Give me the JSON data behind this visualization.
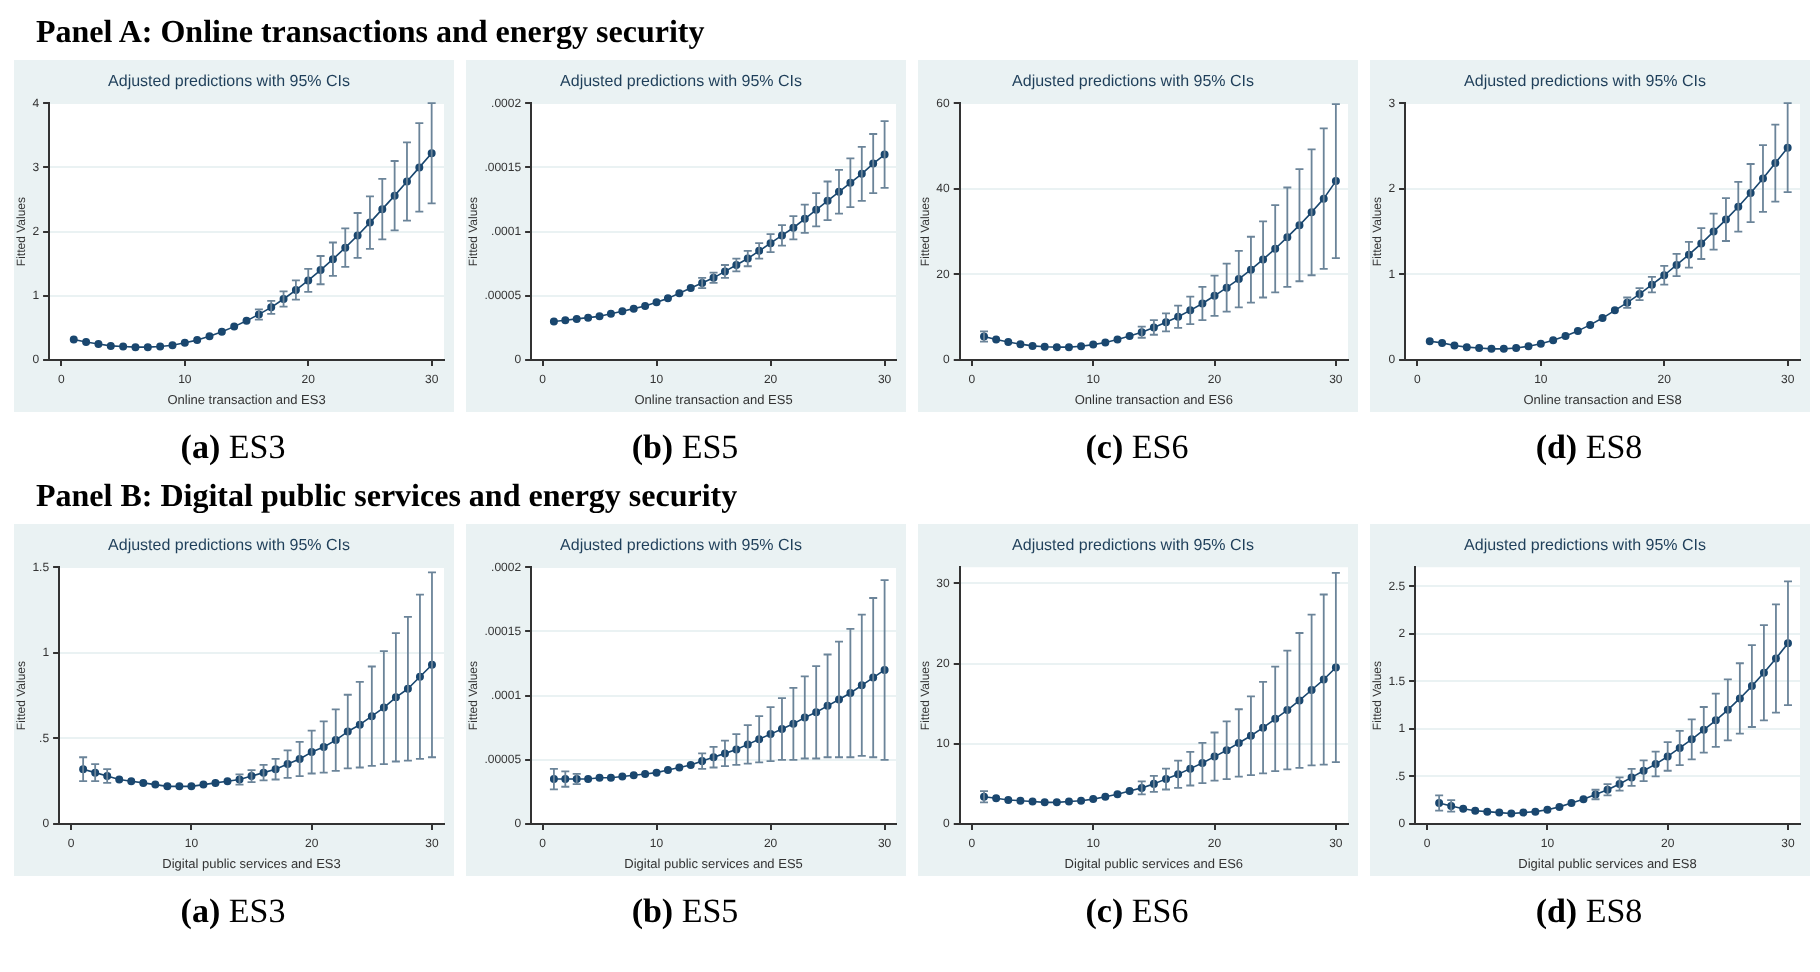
{
  "chart_data": [
    {
      "type": "line",
      "annotations": [
        "Panel A:  Online transactions and energy security"
      ],
      "title": "Adjusted predictions with 95% CIs",
      "subtitle": "(a) ES3",
      "xlabel": "Online transaction and ES3",
      "ylabel": "Fitted Values",
      "x": [
        1,
        2,
        3,
        4,
        5,
        6,
        7,
        8,
        9,
        10,
        11,
        12,
        13,
        14,
        15,
        16,
        17,
        18,
        19,
        20,
        21,
        22,
        23,
        24,
        25,
        26,
        27,
        28,
        29,
        30
      ],
      "xlim": [
        -1,
        31
      ],
      "xticks": [
        0,
        10,
        20,
        30
      ],
      "ylim": [
        0,
        4
      ],
      "yticks": [
        0,
        1,
        2,
        3,
        4
      ],
      "grid": "y",
      "marker": "circle",
      "line_style": "solid",
      "series": [
        {
          "color": "#1a476f",
          "values": [
            0.32,
            0.28,
            0.25,
            0.22,
            0.21,
            0.2,
            0.2,
            0.21,
            0.23,
            0.27,
            0.31,
            0.37,
            0.44,
            0.52,
            0.61,
            0.71,
            0.82,
            0.95,
            1.09,
            1.24,
            1.4,
            1.57,
            1.75,
            1.94,
            2.14,
            2.35,
            2.56,
            2.78,
            3.0,
            3.22
          ],
          "errors": [
            null,
            null,
            null,
            null,
            null,
            null,
            null,
            null,
            null,
            null,
            null,
            null,
            null,
            null,
            null,
            0.08,
            0.1,
            0.12,
            0.15,
            0.18,
            0.22,
            0.26,
            0.3,
            0.35,
            0.41,
            0.47,
            0.54,
            0.61,
            0.69,
            0.78
          ]
        }
      ]
    },
    {
      "type": "line",
      "title": "Adjusted predictions with 95% CIs",
      "subtitle": "(b) ES5",
      "xlabel": "Online transaction and ES5",
      "ylabel": "Fitted Values",
      "x": [
        1,
        2,
        3,
        4,
        5,
        6,
        7,
        8,
        9,
        10,
        11,
        12,
        13,
        14,
        15,
        16,
        17,
        18,
        19,
        20,
        21,
        22,
        23,
        24,
        25,
        26,
        27,
        28,
        29,
        30
      ],
      "xlim": [
        -1,
        31
      ],
      "xticks": [
        0,
        10,
        20,
        30
      ],
      "ylim": [
        0,
        0.0002
      ],
      "yticks": [
        0,
        {
          "value": 5e-05,
          "label": ".00005"
        },
        {
          "value": 0.0001,
          "label": ".0001"
        },
        {
          "value": 0.00015,
          "label": ".00015"
        },
        {
          "value": 0.0002,
          "label": ".0002"
        }
      ],
      "grid": "y",
      "marker": "circle",
      "line_style": "solid",
      "series": [
        {
          "color": "#1a476f",
          "values": [
            3e-05,
            3.1e-05,
            3.2e-05,
            3.3e-05,
            3.4e-05,
            3.6e-05,
            3.8e-05,
            4e-05,
            4.2e-05,
            4.5e-05,
            4.8e-05,
            5.2e-05,
            5.6e-05,
            6e-05,
            6.4e-05,
            6.9e-05,
            7.4e-05,
            7.9e-05,
            8.5e-05,
            9.1e-05,
            9.7e-05,
            0.000103,
            0.00011,
            0.000117,
            0.000124,
            0.000131,
            0.000138,
            0.000145,
            0.000153,
            0.00016
          ],
          "errors": [
            null,
            null,
            null,
            null,
            null,
            null,
            null,
            null,
            null,
            null,
            null,
            null,
            null,
            4e-06,
            4e-06,
            5e-06,
            5e-06,
            6e-06,
            6e-06,
            7e-06,
            8e-06,
            9e-06,
            1.1e-05,
            1.3e-05,
            1.5e-05,
            1.7e-05,
            1.9e-05,
            2.1e-05,
            2.3e-05,
            2.6e-05
          ]
        }
      ]
    },
    {
      "type": "line",
      "title": "Adjusted predictions with 95% CIs",
      "subtitle": "(c) ES6",
      "xlabel": "Online transaction and ES6",
      "ylabel": "Fitted Values",
      "x": [
        1,
        2,
        3,
        4,
        5,
        6,
        7,
        8,
        9,
        10,
        11,
        12,
        13,
        14,
        15,
        16,
        17,
        18,
        19,
        20,
        21,
        22,
        23,
        24,
        25,
        26,
        27,
        28,
        29,
        30
      ],
      "xlim": [
        -1,
        31
      ],
      "xticks": [
        0,
        10,
        20,
        30
      ],
      "ylim": [
        0,
        60
      ],
      "yticks": [
        0,
        20,
        40,
        60
      ],
      "grid": "y",
      "marker": "circle",
      "line_style": "solid",
      "series": [
        {
          "color": "#1a476f",
          "values": [
            5.5,
            4.8,
            4.2,
            3.7,
            3.3,
            3.1,
            3.0,
            3.0,
            3.2,
            3.6,
            4.1,
            4.8,
            5.6,
            6.5,
            7.6,
            8.8,
            10.1,
            11.6,
            13.2,
            15.0,
            16.9,
            18.9,
            21.1,
            23.5,
            26.0,
            28.7,
            31.5,
            34.5,
            37.7,
            41.8
          ],
          "errors": [
            1.2,
            null,
            null,
            null,
            null,
            null,
            null,
            null,
            null,
            null,
            null,
            null,
            null,
            1.3,
            1.7,
            2.1,
            2.6,
            3.2,
            3.9,
            4.7,
            5.6,
            6.6,
            7.7,
            8.9,
            10.2,
            11.6,
            13.1,
            14.7,
            16.4,
            18
          ]
        }
      ]
    },
    {
      "type": "line",
      "title": "Adjusted predictions with 95% CIs",
      "subtitle": "(d) ES8",
      "xlabel": "Online transaction and ES8",
      "ylabel": "Fitted Values",
      "x": [
        1,
        2,
        3,
        4,
        5,
        6,
        7,
        8,
        9,
        10,
        11,
        12,
        13,
        14,
        15,
        16,
        17,
        18,
        19,
        20,
        21,
        22,
        23,
        24,
        25,
        26,
        27,
        28,
        29,
        30
      ],
      "xlim": [
        -1,
        31
      ],
      "xticks": [
        0,
        10,
        20,
        30
      ],
      "ylim": [
        0,
        3
      ],
      "yticks": [
        0,
        1,
        2,
        3
      ],
      "grid": "y",
      "marker": "circle",
      "line_style": "solid",
      "series": [
        {
          "color": "#1a476f",
          "values": [
            0.22,
            0.2,
            0.17,
            0.15,
            0.14,
            0.13,
            0.13,
            0.14,
            0.16,
            0.19,
            0.23,
            0.28,
            0.34,
            0.41,
            0.49,
            0.58,
            0.67,
            0.77,
            0.88,
            0.99,
            1.11,
            1.23,
            1.36,
            1.5,
            1.64,
            1.79,
            1.95,
            2.12,
            2.3,
            2.48
          ],
          "errors": [
            null,
            null,
            null,
            null,
            null,
            null,
            null,
            null,
            null,
            null,
            null,
            null,
            null,
            null,
            null,
            null,
            0.06,
            0.07,
            0.09,
            0.11,
            0.13,
            0.15,
            0.18,
            0.21,
            0.25,
            0.29,
            0.34,
            0.39,
            0.45,
            0.52
          ]
        }
      ]
    },
    {
      "type": "line",
      "annotations": [
        "Panel B:  Digital public services and energy security"
      ],
      "title": "Adjusted predictions with 95% CIs",
      "subtitle": "(a) ES3",
      "xlabel": "Digital public services and ES3",
      "ylabel": "Fitted Values",
      "x": [
        1,
        2,
        3,
        4,
        5,
        6,
        7,
        8,
        9,
        10,
        11,
        12,
        13,
        14,
        15,
        16,
        17,
        18,
        19,
        20,
        21,
        22,
        23,
        24,
        25,
        26,
        27,
        28,
        29,
        30
      ],
      "xlim": [
        -1,
        31
      ],
      "xticks": [
        0,
        10,
        20,
        30
      ],
      "ylim": [
        0,
        1.5
      ],
      "yticks": [
        0,
        {
          "value": 0.5,
          "label": ".5"
        },
        1,
        1.5
      ],
      "grid": "y",
      "marker": "circle",
      "line_style": "solid",
      "series": [
        {
          "color": "#1a476f",
          "values": [
            0.32,
            0.3,
            0.28,
            0.26,
            0.25,
            0.24,
            0.23,
            0.22,
            0.22,
            0.22,
            0.23,
            0.24,
            0.25,
            0.26,
            0.28,
            0.3,
            0.32,
            0.35,
            0.38,
            0.42,
            0.45,
            0.49,
            0.54,
            0.58,
            0.63,
            0.68,
            0.74,
            0.79,
            0.86,
            0.93
          ],
          "errors": [
            0.07,
            0.05,
            0.04,
            null,
            null,
            null,
            null,
            null,
            null,
            null,
            null,
            null,
            null,
            0.03,
            0.035,
            0.045,
            0.06,
            0.08,
            0.1,
            0.125,
            0.15,
            0.18,
            0.215,
            0.25,
            0.29,
            0.33,
            0.375,
            0.42,
            0.48,
            0.54
          ]
        }
      ]
    },
    {
      "type": "line",
      "title": "Adjusted predictions with 95% CIs",
      "subtitle": "(b) ES5",
      "xlabel": "Digital public services and ES5",
      "ylabel": "Fitted Values",
      "x": [
        1,
        2,
        3,
        4,
        5,
        6,
        7,
        8,
        9,
        10,
        11,
        12,
        13,
        14,
        15,
        16,
        17,
        18,
        19,
        20,
        21,
        22,
        23,
        24,
        25,
        26,
        27,
        28,
        29,
        30
      ],
      "xlim": [
        -1,
        31
      ],
      "xticks": [
        0,
        10,
        20,
        30
      ],
      "ylim": [
        0,
        0.0002
      ],
      "yticks": [
        0,
        {
          "value": 5e-05,
          "label": ".00005"
        },
        {
          "value": 0.0001,
          "label": ".0001"
        },
        {
          "value": 0.00015,
          "label": ".00015"
        },
        {
          "value": 0.0002,
          "label": ".0002"
        }
      ],
      "grid": "y",
      "marker": "circle",
      "line_style": "solid",
      "series": [
        {
          "color": "#1a476f",
          "values": [
            3.5e-05,
            3.5e-05,
            3.5e-05,
            3.5e-05,
            3.6e-05,
            3.6e-05,
            3.7e-05,
            3.8e-05,
            3.9e-05,
            4e-05,
            4.2e-05,
            4.4e-05,
            4.6e-05,
            4.9e-05,
            5.2e-05,
            5.5e-05,
            5.8e-05,
            6.2e-05,
            6.6e-05,
            7e-05,
            7.4e-05,
            7.8e-05,
            8.3e-05,
            8.7e-05,
            9.2e-05,
            9.7e-05,
            0.000102,
            0.000108,
            0.000114,
            0.00012
          ],
          "errors": [
            8e-06,
            6e-06,
            4e-06,
            null,
            null,
            null,
            null,
            null,
            null,
            null,
            null,
            null,
            null,
            6e-06,
            8e-06,
            1e-05,
            1.2e-05,
            1.5e-05,
            1.8e-05,
            2.1e-05,
            2.4e-05,
            2.8e-05,
            3.2e-05,
            3.6e-05,
            4e-05,
            4.5e-05,
            5e-05,
            5.5e-05,
            6.2e-05,
            7e-05
          ]
        }
      ]
    },
    {
      "type": "line",
      "title": "Adjusted predictions with 95% CIs",
      "subtitle": "(c) ES6",
      "xlabel": "Digital public services and ES6",
      "ylabel": "Fitted Values",
      "x": [
        1,
        2,
        3,
        4,
        5,
        6,
        7,
        8,
        9,
        10,
        11,
        12,
        13,
        14,
        15,
        16,
        17,
        18,
        19,
        20,
        21,
        22,
        23,
        24,
        25,
        26,
        27,
        28,
        29,
        30
      ],
      "xlim": [
        -1,
        31
      ],
      "xticks": [
        0,
        10,
        20,
        30
      ],
      "ylim": [
        0,
        32
      ],
      "yticks": [
        0,
        10,
        20,
        30
      ],
      "grid": "y",
      "marker": "circle",
      "line_style": "solid",
      "series": [
        {
          "color": "#1a476f",
          "values": [
            3.4,
            3.2,
            3.0,
            2.9,
            2.8,
            2.7,
            2.7,
            2.8,
            2.9,
            3.1,
            3.4,
            3.7,
            4.1,
            4.5,
            5.0,
            5.6,
            6.2,
            6.9,
            7.6,
            8.4,
            9.2,
            10.1,
            11.0,
            12.0,
            13.1,
            14.2,
            15.4,
            16.7,
            18.0,
            19.5
          ],
          "errors": [
            0.7,
            null,
            null,
            null,
            null,
            null,
            null,
            null,
            null,
            null,
            null,
            null,
            null,
            0.8,
            1.0,
            1.3,
            1.7,
            2.1,
            2.5,
            3.0,
            3.6,
            4.2,
            4.9,
            5.7,
            6.5,
            7.4,
            8.4,
            9.4,
            10.6,
            11.8
          ]
        }
      ]
    },
    {
      "type": "line",
      "title": "Adjusted predictions with 95% CIs",
      "subtitle": "(d) ES8",
      "xlabel": "Digital public services and ES8",
      "ylabel": "Fitted Values",
      "x": [
        1,
        2,
        3,
        4,
        5,
        6,
        7,
        8,
        9,
        10,
        11,
        12,
        13,
        14,
        15,
        16,
        17,
        18,
        19,
        20,
        21,
        22,
        23,
        24,
        25,
        26,
        27,
        28,
        29,
        30
      ],
      "xlim": [
        -1,
        31
      ],
      "xticks": [
        0,
        10,
        20,
        30
      ],
      "ylim": [
        0,
        2.7
      ],
      "yticks": [
        0,
        {
          "value": 0.5,
          "label": ".5"
        },
        1,
        1.5,
        2,
        2.5
      ],
      "grid": "y",
      "marker": "circle",
      "line_style": "solid",
      "series": [
        {
          "color": "#1a476f",
          "values": [
            0.22,
            0.19,
            0.16,
            0.14,
            0.13,
            0.12,
            0.11,
            0.12,
            0.13,
            0.15,
            0.18,
            0.22,
            0.26,
            0.31,
            0.36,
            0.42,
            0.49,
            0.56,
            0.63,
            0.71,
            0.8,
            0.89,
            0.99,
            1.09,
            1.2,
            1.32,
            1.45,
            1.59,
            1.74,
            1.9
          ],
          "errors": [
            0.08,
            0.06,
            null,
            null,
            null,
            null,
            null,
            null,
            null,
            null,
            null,
            null,
            null,
            0.05,
            0.06,
            0.07,
            0.09,
            0.11,
            0.13,
            0.15,
            0.18,
            0.21,
            0.24,
            0.28,
            0.32,
            0.37,
            0.43,
            0.5,
            0.57,
            0.65
          ]
        }
      ]
    }
  ]
}
